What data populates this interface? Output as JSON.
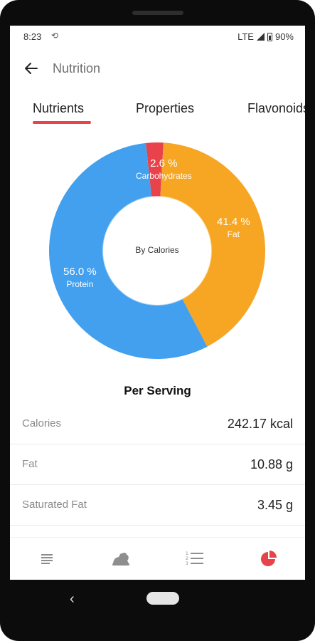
{
  "status_bar": {
    "time": "8:23",
    "network": "LTE",
    "battery": "90%"
  },
  "app_bar": {
    "title": "Nutrition",
    "back_icon": "arrow-left-icon"
  },
  "tabs": [
    {
      "label": "Nutrients",
      "active": true
    },
    {
      "label": "Properties",
      "active": false
    },
    {
      "label": "Flavonoids",
      "active": false
    }
  ],
  "chart_data": {
    "type": "pie",
    "center_label": "By Calories",
    "slices": [
      {
        "name": "Carbohydrates",
        "value": 2.6,
        "label": "2.6 %",
        "color": "#e8434b"
      },
      {
        "name": "Fat",
        "value": 41.4,
        "label": "41.4 %",
        "color": "#f6a623"
      },
      {
        "name": "Protein",
        "value": 56.0,
        "label": "56.0 %",
        "color": "#42a0ef"
      }
    ]
  },
  "per_serving": {
    "title": "Per Serving",
    "rows": [
      {
        "name": "Calories",
        "value": "242.17 kcal"
      },
      {
        "name": "Fat",
        "value": "10.88 g"
      },
      {
        "name": "Saturated Fat",
        "value": "3.45 g"
      }
    ]
  },
  "bottom_nav": [
    {
      "icon": "list-lines-icon",
      "active": false
    },
    {
      "icon": "ingredients-icon",
      "active": false
    },
    {
      "icon": "numbered-list-icon",
      "active": false
    },
    {
      "icon": "pie-chart-icon",
      "active": true
    }
  ],
  "colors": {
    "accent": "#e8434b",
    "nav_inactive": "#8e8e8e"
  }
}
